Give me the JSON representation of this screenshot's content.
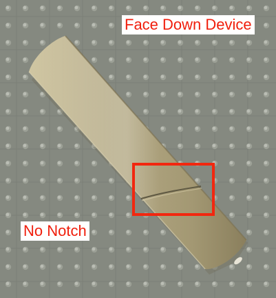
{
  "annotations": {
    "top_label": "Face Down Device",
    "bottom_label": "No Notch"
  },
  "colors": {
    "annotation_text": "#f01e0c",
    "annotation_background": "#ffffff",
    "highlight_box": "#f2270f",
    "mat": "#8b8f86",
    "device_body": "#b2a783"
  },
  "icons": {
    "mat": "perforated-mat-texture",
    "device": "heated-tobacco-device"
  }
}
